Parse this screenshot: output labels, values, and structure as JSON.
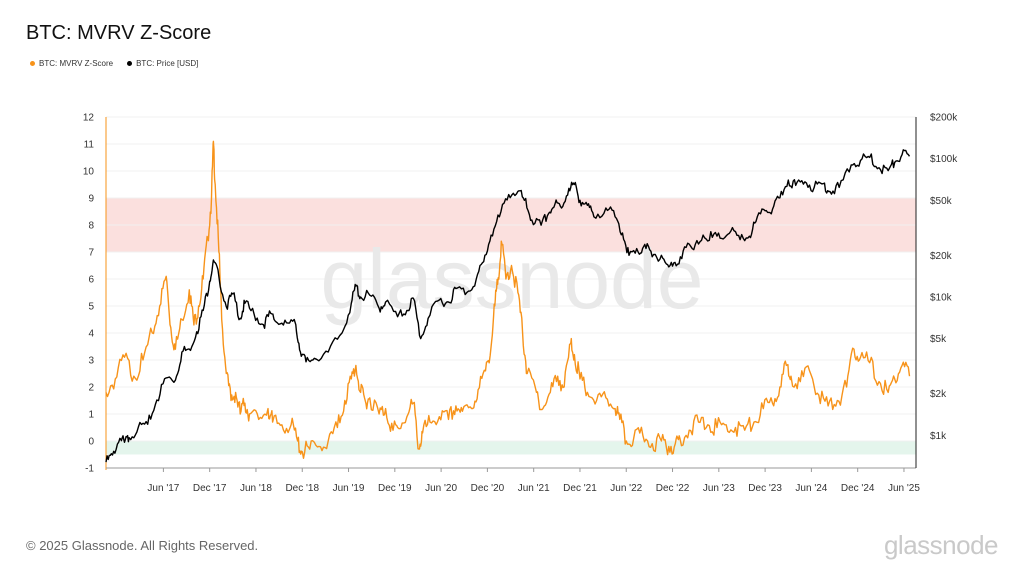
{
  "header": {
    "title": "BTC: MVRV Z-Score"
  },
  "legend": [
    {
      "label": "BTC: MVRV Z-Score",
      "color": "#f7931a"
    },
    {
      "label": "BTC: Price [USD]",
      "color": "#000000"
    }
  ],
  "footer": {
    "copyright": "© 2025 Glassnode. All Rights Reserved.",
    "brand": "glassnode"
  },
  "watermark": "glassnode",
  "chart_data": {
    "type": "line",
    "title": "BTC: MVRV Z-Score",
    "x_ticks": [
      "Jun '17",
      "Dec '17",
      "Jun '18",
      "Dec '18",
      "Jun '19",
      "Dec '19",
      "Jun '20",
      "Dec '20",
      "Jun '21",
      "Dec '21",
      "Jun '22",
      "Dec '22",
      "Jun '23",
      "Dec '23",
      "Jun '24",
      "Dec '24",
      "Jun '25"
    ],
    "x_range": [
      2016.8,
      2025.55
    ],
    "y_left": {
      "ticks": [
        "-1",
        "0",
        "1",
        "2",
        "3",
        "4",
        "5",
        "6",
        "7",
        "8",
        "9",
        "10",
        "11",
        "12"
      ],
      "range": [
        -1,
        12
      ]
    },
    "y_right": {
      "scale": "log",
      "range": [
        580,
        200000
      ],
      "ticks": [
        {
          "value": 1000,
          "label": "$1k"
        },
        {
          "value": 2000,
          "label": "$2k"
        },
        {
          "value": 5000,
          "label": "$5k"
        },
        {
          "value": 10000,
          "label": "$10k"
        },
        {
          "value": 20000,
          "label": "$20k"
        },
        {
          "value": 50000,
          "label": "$50k"
        },
        {
          "value": 100000,
          "label": "$100k"
        },
        {
          "value": 200000,
          "label": "$200k"
        }
      ]
    },
    "bands": [
      {
        "from": 7,
        "to": 9,
        "color": "#fbe0de"
      },
      {
        "from": -0.5,
        "to": 0,
        "color": "#e4f5ec"
      }
    ],
    "grid": true,
    "legend_position": "top-left",
    "series": [
      {
        "name": "BTC: MVRV Z-Score",
        "color": "#f7931a",
        "axis": "left",
        "points": [
          [
            2016.8,
            1.8
          ],
          [
            2016.9,
            2.3
          ],
          [
            2017.0,
            3.1
          ],
          [
            2017.1,
            2.4
          ],
          [
            2017.2,
            3.0
          ],
          [
            2017.3,
            4.0
          ],
          [
            2017.38,
            5.0
          ],
          [
            2017.45,
            6.1
          ],
          [
            2017.5,
            4.2
          ],
          [
            2017.55,
            3.4
          ],
          [
            2017.62,
            4.5
          ],
          [
            2017.7,
            5.6
          ],
          [
            2017.75,
            4.3
          ],
          [
            2017.8,
            5.0
          ],
          [
            2017.85,
            6.0
          ],
          [
            2017.9,
            7.5
          ],
          [
            2017.94,
            9.0
          ],
          [
            2017.96,
            11.1
          ],
          [
            2017.98,
            9.5
          ],
          [
            2018.02,
            7.0
          ],
          [
            2018.05,
            4.5
          ],
          [
            2018.1,
            2.5
          ],
          [
            2018.15,
            1.5
          ],
          [
            2018.2,
            1.8
          ],
          [
            2018.25,
            1.0
          ],
          [
            2018.3,
            1.4
          ],
          [
            2018.35,
            1.0
          ],
          [
            2018.45,
            0.8
          ],
          [
            2018.55,
            1.2
          ],
          [
            2018.6,
            0.7
          ],
          [
            2018.7,
            0.6
          ],
          [
            2018.8,
            0.6
          ],
          [
            2018.87,
            0.0
          ],
          [
            2018.92,
            -0.4
          ],
          [
            2019.0,
            -0.3
          ],
          [
            2019.1,
            -0.2
          ],
          [
            2019.2,
            0.0
          ],
          [
            2019.3,
            0.5
          ],
          [
            2019.38,
            1.5
          ],
          [
            2019.45,
            2.3
          ],
          [
            2019.5,
            2.8
          ],
          [
            2019.55,
            1.8
          ],
          [
            2019.6,
            1.5
          ],
          [
            2019.65,
            1.6
          ],
          [
            2019.75,
            1.0
          ],
          [
            2019.82,
            1.2
          ],
          [
            2019.9,
            0.4
          ],
          [
            2019.95,
            0.5
          ],
          [
            2020.05,
            0.9
          ],
          [
            2020.12,
            1.4
          ],
          [
            2020.18,
            -0.3
          ],
          [
            2020.22,
            0.3
          ],
          [
            2020.3,
            0.7
          ],
          [
            2020.4,
            0.9
          ],
          [
            2020.5,
            0.8
          ],
          [
            2020.58,
            1.3
          ],
          [
            2020.65,
            1.1
          ],
          [
            2020.75,
            1.2
          ],
          [
            2020.82,
            1.9
          ],
          [
            2020.9,
            2.6
          ],
          [
            2020.96,
            3.5
          ],
          [
            2021.0,
            5.0
          ],
          [
            2021.03,
            5.8
          ],
          [
            2021.07,
            7.4
          ],
          [
            2021.12,
            6.0
          ],
          [
            2021.18,
            6.5
          ],
          [
            2021.25,
            5.5
          ],
          [
            2021.3,
            4.0
          ],
          [
            2021.35,
            2.5
          ],
          [
            2021.45,
            1.8
          ],
          [
            2021.52,
            1.2
          ],
          [
            2021.6,
            1.8
          ],
          [
            2021.68,
            2.4
          ],
          [
            2021.75,
            2.0
          ],
          [
            2021.82,
            3.6
          ],
          [
            2021.86,
            3.2
          ],
          [
            2021.92,
            2.3
          ],
          [
            2022.0,
            1.8
          ],
          [
            2022.1,
            1.5
          ],
          [
            2022.2,
            1.6
          ],
          [
            2022.3,
            1.2
          ],
          [
            2022.35,
            0.8
          ],
          [
            2022.42,
            0.0
          ],
          [
            2022.5,
            0.1
          ],
          [
            2022.6,
            0.2
          ],
          [
            2022.7,
            -0.1
          ],
          [
            2022.8,
            0.0
          ],
          [
            2022.88,
            -0.2
          ],
          [
            2022.95,
            -0.1
          ],
          [
            2023.0,
            0.1
          ],
          [
            2023.1,
            0.4
          ],
          [
            2023.2,
            0.7
          ],
          [
            2023.3,
            0.6
          ],
          [
            2023.4,
            0.5
          ],
          [
            2023.5,
            0.6
          ],
          [
            2023.6,
            0.5
          ],
          [
            2023.7,
            0.4
          ],
          [
            2023.8,
            0.7
          ],
          [
            2023.9,
            1.2
          ],
          [
            2024.0,
            1.4
          ],
          [
            2024.08,
            2.0
          ],
          [
            2024.15,
            2.8
          ],
          [
            2024.2,
            2.4
          ],
          [
            2024.3,
            2.2
          ],
          [
            2024.4,
            2.6
          ],
          [
            2024.5,
            1.7
          ],
          [
            2024.6,
            1.3
          ],
          [
            2024.7,
            1.5
          ],
          [
            2024.8,
            2.0
          ],
          [
            2024.88,
            3.4
          ],
          [
            2024.95,
            3.1
          ],
          [
            2025.05,
            2.9
          ],
          [
            2025.15,
            2.2
          ],
          [
            2025.25,
            1.8
          ],
          [
            2025.32,
            2.3
          ],
          [
            2025.4,
            2.8
          ],
          [
            2025.48,
            2.4
          ]
        ]
      },
      {
        "name": "BTC: Price [USD]",
        "color": "#000000",
        "axis": "right",
        "points": [
          [
            2016.8,
            640
          ],
          [
            2016.87,
            720
          ],
          [
            2016.95,
            950
          ],
          [
            2017.0,
            890
          ],
          [
            2017.05,
            960
          ],
          [
            2017.15,
            1150
          ],
          [
            2017.25,
            1200
          ],
          [
            2017.35,
            1800
          ],
          [
            2017.45,
            2600
          ],
          [
            2017.55,
            2500
          ],
          [
            2017.62,
            4000
          ],
          [
            2017.7,
            4200
          ],
          [
            2017.78,
            5600
          ],
          [
            2017.85,
            8000
          ],
          [
            2017.92,
            13000
          ],
          [
            2017.96,
            18500
          ],
          [
            2018.02,
            14000
          ],
          [
            2018.1,
            8500
          ],
          [
            2018.17,
            10500
          ],
          [
            2018.25,
            7000
          ],
          [
            2018.3,
            9000
          ],
          [
            2018.4,
            7500
          ],
          [
            2018.5,
            6300
          ],
          [
            2018.58,
            7600
          ],
          [
            2018.65,
            6500
          ],
          [
            2018.75,
            6500
          ],
          [
            2018.85,
            6300
          ],
          [
            2018.9,
            4000
          ],
          [
            2018.96,
            3400
          ],
          [
            2019.05,
            3600
          ],
          [
            2019.2,
            4000
          ],
          [
            2019.35,
            5500
          ],
          [
            2019.45,
            9000
          ],
          [
            2019.5,
            12000
          ],
          [
            2019.55,
            10000
          ],
          [
            2019.65,
            10300
          ],
          [
            2019.75,
            8300
          ],
          [
            2019.82,
            9200
          ],
          [
            2019.95,
            7200
          ],
          [
            2020.05,
            8000
          ],
          [
            2020.12,
            9800
          ],
          [
            2020.2,
            5000
          ],
          [
            2020.28,
            7000
          ],
          [
            2020.4,
            9500
          ],
          [
            2020.5,
            9200
          ],
          [
            2020.58,
            11500
          ],
          [
            2020.7,
            10800
          ],
          [
            2020.8,
            13500
          ],
          [
            2020.88,
            18000
          ],
          [
            2020.96,
            28000
          ],
          [
            2021.05,
            38000
          ],
          [
            2021.15,
            55000
          ],
          [
            2021.25,
            58000
          ],
          [
            2021.32,
            50000
          ],
          [
            2021.4,
            36000
          ],
          [
            2021.5,
            33000
          ],
          [
            2021.58,
            40000
          ],
          [
            2021.65,
            47000
          ],
          [
            2021.72,
            44000
          ],
          [
            2021.8,
            61000
          ],
          [
            2021.86,
            65000
          ],
          [
            2021.92,
            50000
          ],
          [
            2022.0,
            46000
          ],
          [
            2022.07,
            38000
          ],
          [
            2022.2,
            44000
          ],
          [
            2022.3,
            38000
          ],
          [
            2022.38,
            29000
          ],
          [
            2022.45,
            20000
          ],
          [
            2022.55,
            21000
          ],
          [
            2022.62,
            24000
          ],
          [
            2022.7,
            19500
          ],
          [
            2022.8,
            20000
          ],
          [
            2022.88,
            16500
          ],
          [
            2022.96,
            16800
          ],
          [
            2023.05,
            23000
          ],
          [
            2023.15,
            22000
          ],
          [
            2023.25,
            28000
          ],
          [
            2023.35,
            27000
          ],
          [
            2023.45,
            26500
          ],
          [
            2023.55,
            30000
          ],
          [
            2023.65,
            26000
          ],
          [
            2023.75,
            27500
          ],
          [
            2023.82,
            35000
          ],
          [
            2023.92,
            42000
          ],
          [
            2024.0,
            43000
          ],
          [
            2024.08,
            52000
          ],
          [
            2024.17,
            70000
          ],
          [
            2024.25,
            64000
          ],
          [
            2024.35,
            68000
          ],
          [
            2024.45,
            62000
          ],
          [
            2024.55,
            66000
          ],
          [
            2024.62,
            58000
          ],
          [
            2024.72,
            62000
          ],
          [
            2024.85,
            90000
          ],
          [
            2024.95,
            97000
          ],
          [
            2025.05,
            102000
          ],
          [
            2025.15,
            86000
          ],
          [
            2025.25,
            82000
          ],
          [
            2025.32,
            94000
          ],
          [
            2025.4,
            107000
          ],
          [
            2025.48,
            104000
          ]
        ]
      }
    ]
  }
}
